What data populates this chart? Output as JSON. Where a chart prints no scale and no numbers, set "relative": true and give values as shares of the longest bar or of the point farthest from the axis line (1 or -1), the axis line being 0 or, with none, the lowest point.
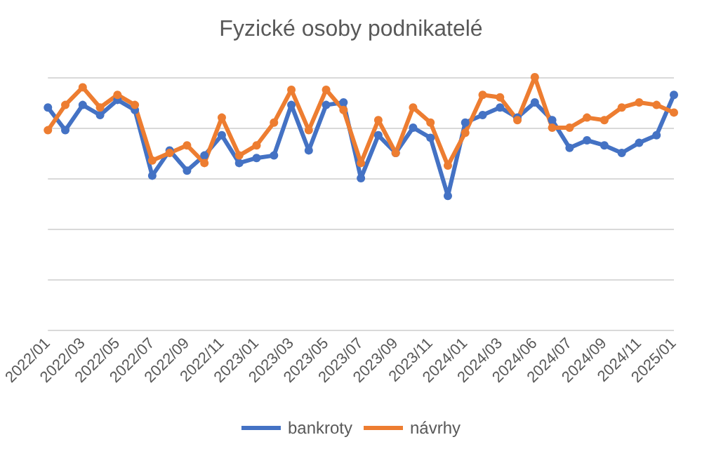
{
  "chart_data": {
    "type": "line",
    "title": "Fyzické osoby podnikatelé",
    "relative": true,
    "grid": "y",
    "legend": "bottom",
    "marker": "circle",
    "line_style": "solid",
    "categories": [
      "2022/01",
      null,
      "2022/03",
      null,
      "2022/05",
      null,
      "2022/07",
      null,
      "2022/09",
      null,
      "2022/11",
      null,
      "2023/01",
      null,
      "2023/03",
      null,
      "2023/05",
      null,
      "2023/07",
      null,
      "2023/09",
      null,
      "2023/11",
      null,
      "2024/01",
      null,
      "2024/03",
      null,
      "2024/06",
      null,
      "2024/07",
      null,
      "2024/09",
      null,
      "2024/11",
      null,
      "2025/01"
    ],
    "series": [
      {
        "name": "bankroty",
        "color": "#4472c4",
        "values": [
          0.88,
          0.79,
          0.89,
          0.85,
          0.91,
          0.87,
          0.61,
          0.71,
          0.63,
          0.69,
          0.77,
          0.66,
          0.68,
          0.69,
          0.89,
          0.71,
          0.89,
          0.9,
          0.6,
          0.77,
          0.7,
          0.8,
          0.76,
          0.53,
          0.82,
          0.85,
          0.88,
          0.84,
          0.9,
          0.83,
          0.72,
          0.75,
          0.73,
          0.7,
          0.74,
          0.77,
          0.93
        ]
      },
      {
        "name": "návrhy",
        "color": "#ed7d31",
        "values": [
          0.79,
          0.89,
          0.96,
          0.88,
          0.93,
          0.89,
          0.67,
          0.7,
          0.73,
          0.66,
          0.84,
          0.69,
          0.73,
          0.82,
          0.95,
          0.79,
          0.95,
          0.87,
          0.66,
          0.83,
          0.7,
          0.88,
          0.82,
          0.65,
          0.78,
          0.93,
          0.92,
          0.83,
          1,
          0.8,
          0.8,
          0.84,
          0.83,
          0.88,
          0.9,
          0.89,
          0.86
        ]
      }
    ]
  }
}
